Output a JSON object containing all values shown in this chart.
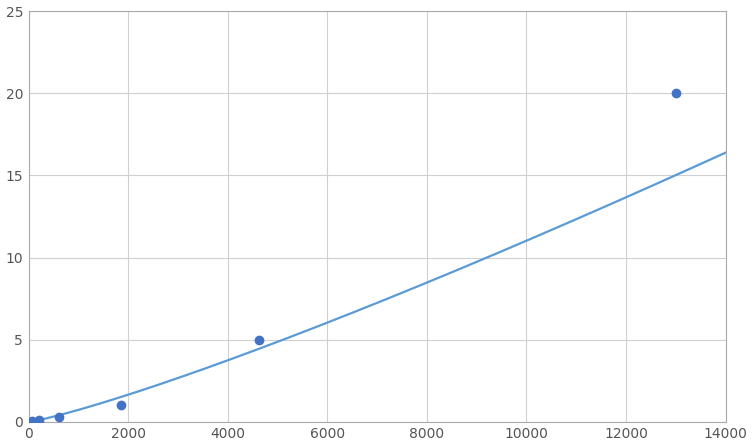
{
  "x_points": [
    75,
    200,
    600,
    1850,
    4630,
    13000
  ],
  "y_points": [
    0.05,
    0.1,
    0.31,
    1.0,
    5.0,
    20.0
  ],
  "xlim": [
    0,
    14000
  ],
  "ylim": [
    0,
    25
  ],
  "xticks": [
    0,
    2000,
    4000,
    6000,
    8000,
    10000,
    12000,
    14000
  ],
  "yticks": [
    0,
    5,
    10,
    15,
    20,
    25
  ],
  "line_color": "#5B9BD5",
  "marker_color": "#4472C4",
  "marker_size": 6,
  "line_width": 1.6,
  "background_color": "#ffffff",
  "grid_color": "#d0d0d0",
  "spine_color": "#aaaaaa"
}
